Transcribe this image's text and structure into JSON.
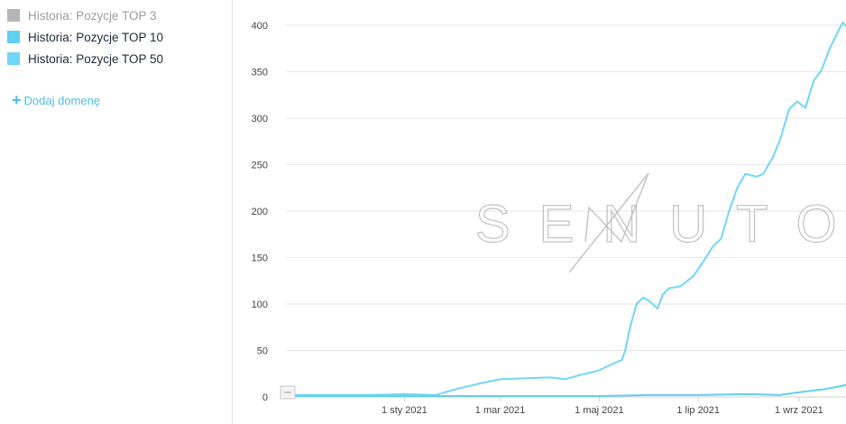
{
  "legend": {
    "items": [
      {
        "label": "Historia: Pozycje TOP 3",
        "color": "#b5b5b5",
        "active": false
      },
      {
        "label": "Historia: Pozycje TOP 10",
        "color": "#5fcff2",
        "active": true
      },
      {
        "label": "Historia: Pozycje TOP 50",
        "color": "#70d6f5",
        "active": true
      }
    ]
  },
  "add_domain": {
    "icon": "plus-icon",
    "label": "Dodaj domenę"
  },
  "watermark": {
    "text": "SENUTO"
  },
  "chart_data": {
    "type": "line",
    "title": "",
    "xlabel": "",
    "ylabel": "",
    "x_range": [
      "2020-10-20",
      "2021-09-30"
    ],
    "ylim": [
      0,
      400
    ],
    "yticks": [
      0,
      50,
      100,
      150,
      200,
      250,
      300,
      350,
      400
    ],
    "xticks": [
      {
        "date": "2021-01-01",
        "label": "1 sty 2021"
      },
      {
        "date": "2021-03-01",
        "label": "1 mar 2021"
      },
      {
        "date": "2021-05-01",
        "label": "1 maj 2021"
      },
      {
        "date": "2021-07-01",
        "label": "1 lip 2021"
      },
      {
        "date": "2021-09-01",
        "label": "1 wrz 2021"
      }
    ],
    "grid": true,
    "series": [
      {
        "name": "Historia: Pozycje TOP 50",
        "color": "#70d6f5",
        "points": [
          [
            "2020-10-20",
            2
          ],
          [
            "2020-11-15",
            2
          ],
          [
            "2020-12-10",
            2
          ],
          [
            "2021-01-01",
            3
          ],
          [
            "2021-01-20",
            2
          ],
          [
            "2021-02-01",
            8
          ],
          [
            "2021-02-15",
            14
          ],
          [
            "2021-03-01",
            19
          ],
          [
            "2021-03-15",
            20
          ],
          [
            "2021-04-01",
            21
          ],
          [
            "2021-04-10",
            19
          ],
          [
            "2021-04-20",
            24
          ],
          [
            "2021-04-30",
            28
          ],
          [
            "2021-05-05",
            32
          ],
          [
            "2021-05-10",
            36
          ],
          [
            "2021-05-15",
            40
          ],
          [
            "2021-05-17",
            50
          ],
          [
            "2021-05-20",
            75
          ],
          [
            "2021-05-24",
            100
          ],
          [
            "2021-05-28",
            107
          ],
          [
            "2021-06-01",
            103
          ],
          [
            "2021-06-06",
            95
          ],
          [
            "2021-06-09",
            110
          ],
          [
            "2021-06-13",
            117
          ],
          [
            "2021-06-20",
            119
          ],
          [
            "2021-06-28",
            130
          ],
          [
            "2021-07-05",
            148
          ],
          [
            "2021-07-10",
            162
          ],
          [
            "2021-07-15",
            170
          ],
          [
            "2021-07-20",
            200
          ],
          [
            "2021-07-25",
            225
          ],
          [
            "2021-07-30",
            240
          ],
          [
            "2021-08-06",
            237
          ],
          [
            "2021-08-10",
            240
          ],
          [
            "2021-08-16",
            258
          ],
          [
            "2021-08-21",
            280
          ],
          [
            "2021-08-26",
            310
          ],
          [
            "2021-08-31",
            318
          ],
          [
            "2021-09-05",
            311
          ],
          [
            "2021-09-10",
            340
          ],
          [
            "2021-09-15",
            352
          ],
          [
            "2021-09-20",
            375
          ],
          [
            "2021-09-25",
            393
          ],
          [
            "2021-09-28",
            403
          ],
          [
            "2021-09-30",
            399
          ]
        ]
      },
      {
        "name": "Historia: Pozycje TOP 10",
        "color": "#5fcff2",
        "points": [
          [
            "2020-10-20",
            1
          ],
          [
            "2021-01-01",
            1
          ],
          [
            "2021-05-01",
            1
          ],
          [
            "2021-06-01",
            2
          ],
          [
            "2021-07-01",
            2
          ],
          [
            "2021-08-01",
            3
          ],
          [
            "2021-08-20",
            2
          ],
          [
            "2021-09-01",
            5
          ],
          [
            "2021-09-15",
            8
          ],
          [
            "2021-09-25",
            11
          ],
          [
            "2021-09-30",
            13
          ]
        ]
      }
    ]
  }
}
